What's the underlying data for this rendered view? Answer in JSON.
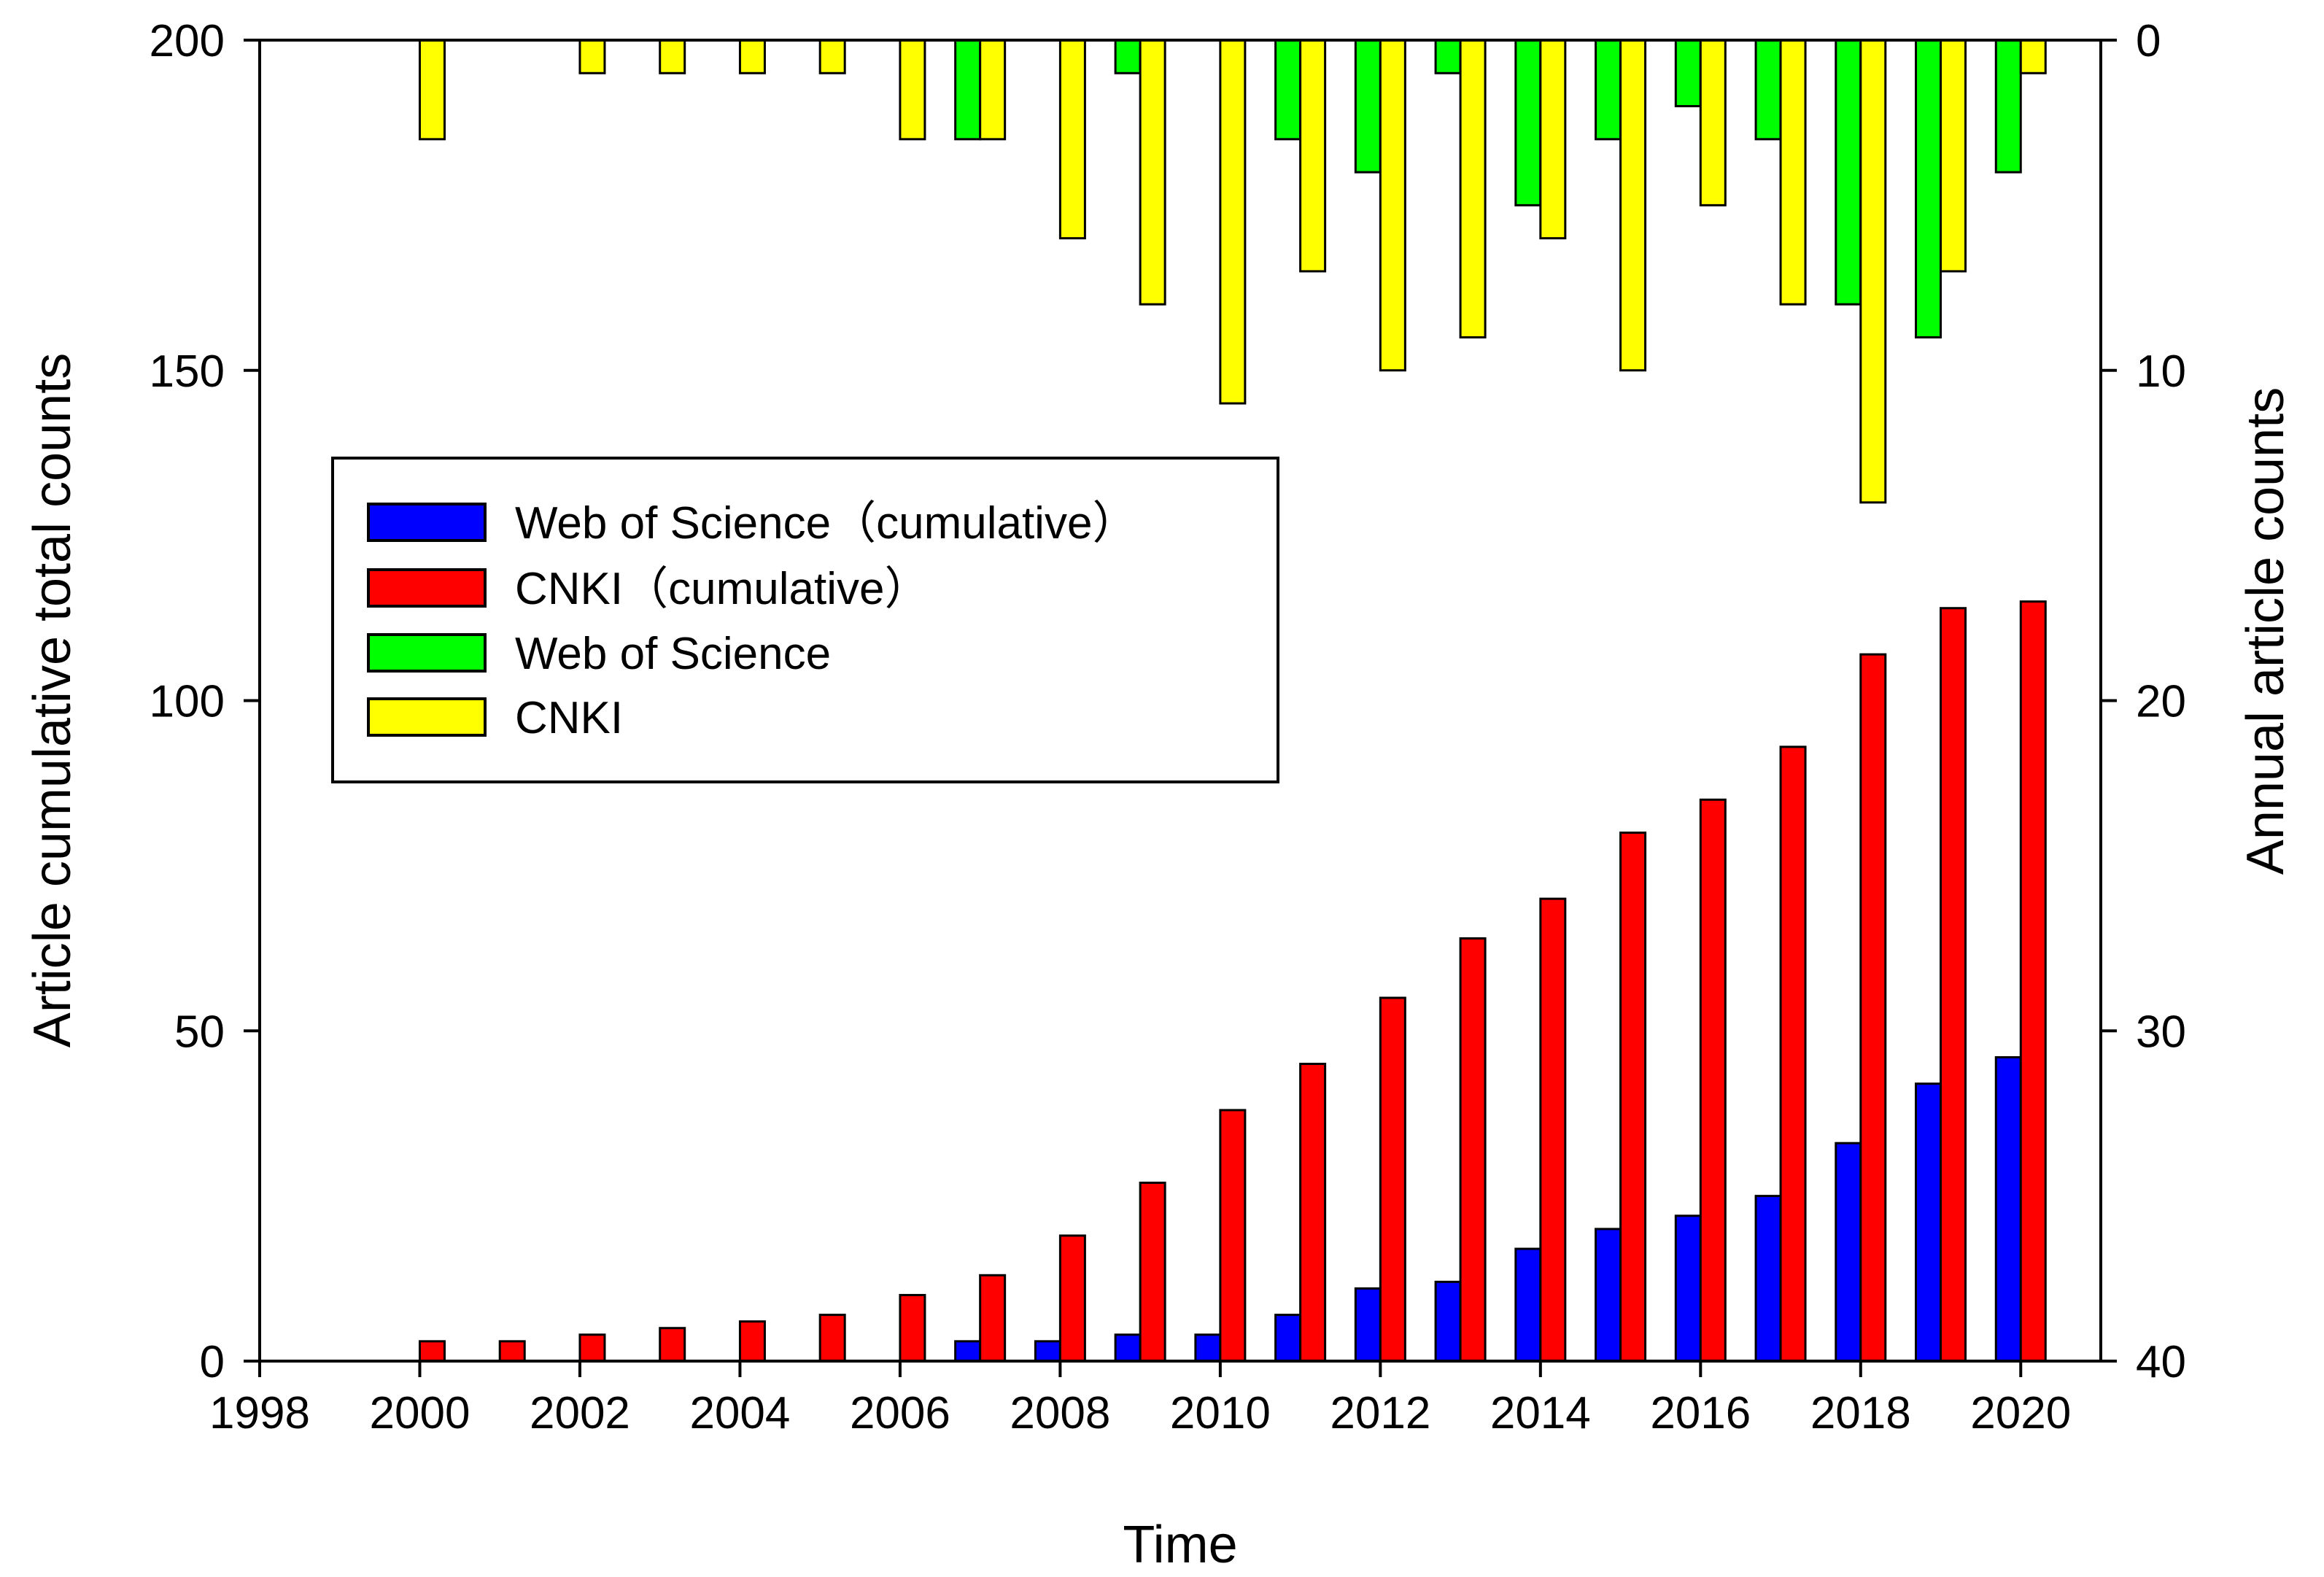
{
  "chart_data": {
    "type": "bar",
    "title": "",
    "xlabel": "Time",
    "ylabel_left": "Article cumulative total counts",
    "ylabel_right": "Annual article counts",
    "x_range": [
      1998,
      2021
    ],
    "x_ticks": [
      1998,
      2000,
      2002,
      2004,
      2006,
      2008,
      2010,
      2012,
      2014,
      2016,
      2018,
      2020
    ],
    "ylim_left": [
      0,
      200
    ],
    "y_ticks_left": [
      0,
      50,
      100,
      150,
      200
    ],
    "ylim_right_inverted": [
      0,
      40
    ],
    "y_ticks_right": [
      0,
      10,
      20,
      30,
      40
    ],
    "grid": false,
    "legend_position": "center-left",
    "series": [
      {
        "name": "Web of Science（cumulative）",
        "axis": "left",
        "color": "#0000ff",
        "x": [
          2007,
          2008,
          2009,
          2010,
          2011,
          2012,
          2013,
          2014,
          2015,
          2016,
          2017,
          2018,
          2019,
          2020
        ],
        "values": [
          3,
          3,
          4,
          4,
          7,
          11,
          12,
          17,
          20,
          22,
          25,
          33,
          42,
          46
        ]
      },
      {
        "name": "CNKI（cumulative）",
        "axis": "left",
        "color": "#ff0000",
        "x": [
          2000,
          2001,
          2002,
          2003,
          2004,
          2005,
          2006,
          2007,
          2008,
          2009,
          2010,
          2011,
          2012,
          2013,
          2014,
          2015,
          2016,
          2017,
          2018,
          2019,
          2020
        ],
        "values": [
          3,
          3,
          4,
          5,
          6,
          7,
          10,
          13,
          19,
          27,
          38,
          45,
          55,
          64,
          70,
          80,
          85,
          93,
          107,
          114,
          115
        ]
      },
      {
        "name": "Web of Science",
        "axis": "right",
        "color": "#00ff00",
        "x": [
          2007,
          2009,
          2011,
          2012,
          2013,
          2014,
          2015,
          2016,
          2017,
          2018,
          2019,
          2020
        ],
        "values": [
          3,
          1,
          3,
          4,
          1,
          5,
          3,
          2,
          3,
          8,
          9,
          4
        ]
      },
      {
        "name": "CNKI",
        "axis": "right",
        "color": "#ffff00",
        "x": [
          2000,
          2002,
          2003,
          2004,
          2005,
          2006,
          2007,
          2008,
          2009,
          2010,
          2011,
          2012,
          2013,
          2014,
          2015,
          2016,
          2017,
          2018,
          2019,
          2020
        ],
        "values": [
          3,
          1,
          1,
          1,
          1,
          3,
          3,
          6,
          8,
          11,
          7,
          10,
          9,
          6,
          10,
          5,
          8,
          14,
          7,
          1
        ]
      }
    ]
  }
}
